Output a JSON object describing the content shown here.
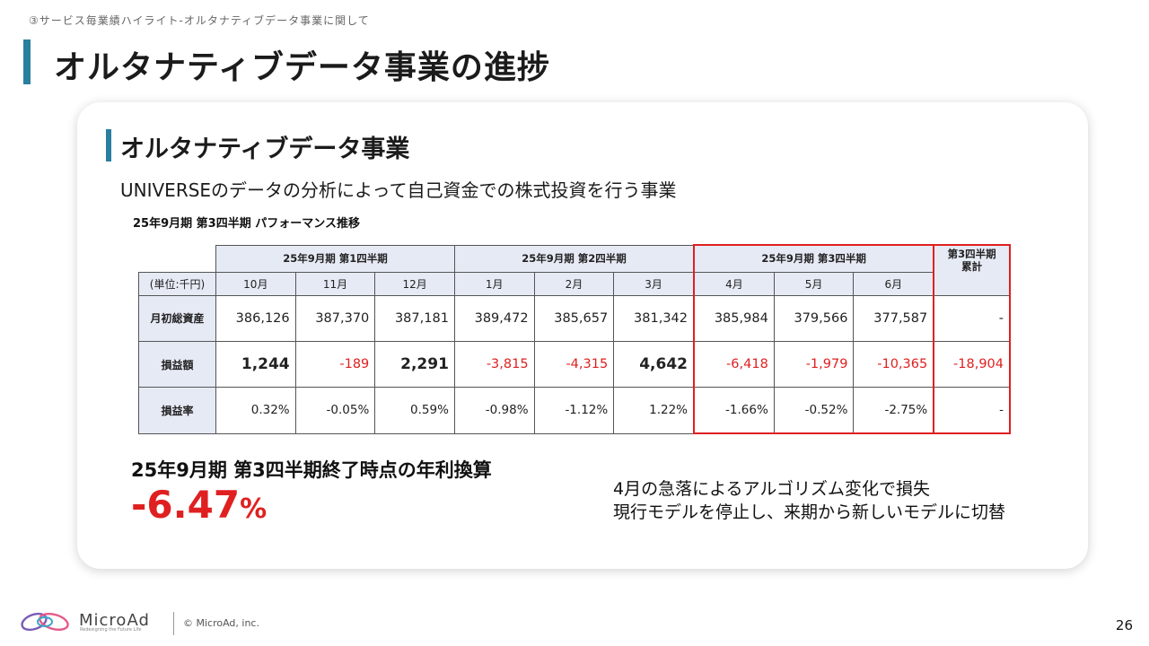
{
  "header": {
    "breadcrumb": "③サービス毎業績ハイライト-オルタナティブデータ事業に関して",
    "title": "オルタナティブデータ事業の進捗"
  },
  "section": {
    "title": "オルタナティブデータ事業",
    "description": "UNIVERSEのデータの分析によって自己資金での株式投資を行う事業",
    "table_caption": "25年9月期  第3四半期 パフォーマンス推移"
  },
  "table": {
    "quarters": [
      "25年9月期 第1四半期",
      "25年9月期 第2四半期",
      "25年9月期 第3四半期"
    ],
    "cumulative_header": [
      "第3四半期",
      "累計"
    ],
    "unit_label": "(単位:千円)",
    "months": [
      "10月",
      "11月",
      "12月",
      "1月",
      "2月",
      "3月",
      "4月",
      "5月",
      "6月"
    ],
    "rows": [
      {
        "label": "月初総資産",
        "values": [
          "386,126",
          "387,370",
          "387,181",
          "389,472",
          "385,657",
          "381,342",
          "385,984",
          "379,566",
          "377,587"
        ],
        "cumulative": "-"
      },
      {
        "label": "損益額",
        "values": [
          "1,244",
          "-189",
          "2,291",
          "-3,815",
          "-4,315",
          "4,642",
          "-6,418",
          "-1,979",
          "-10,365"
        ],
        "cumulative": "-18,904"
      },
      {
        "label": "損益率",
        "values": [
          "0.32%",
          "-0.05%",
          "0.59%",
          "-0.98%",
          "-1.12%",
          "1.22%",
          "-1.66%",
          "-0.52%",
          "-2.75%"
        ],
        "cumulative": "-"
      }
    ],
    "colors": {
      "negative": "#e02020",
      "header_bg": "#e6eaf5",
      "highlight_border": "#e02020"
    }
  },
  "annual": {
    "label": "25年9月期 第3四半期終了時点の年利換算",
    "value": "-6.47",
    "unit": "%"
  },
  "note": {
    "line1": "4月の急落によるアルゴリズム変化で損失",
    "line2": "現行モデルを停止し、来期から新しいモデルに切替"
  },
  "footer": {
    "brand": "MicroAd",
    "tagline": "Redesigning the Future Life",
    "copyright": "© MicroAd, inc.",
    "page": "26"
  },
  "theme": {
    "accent": "#2a7f9e"
  }
}
